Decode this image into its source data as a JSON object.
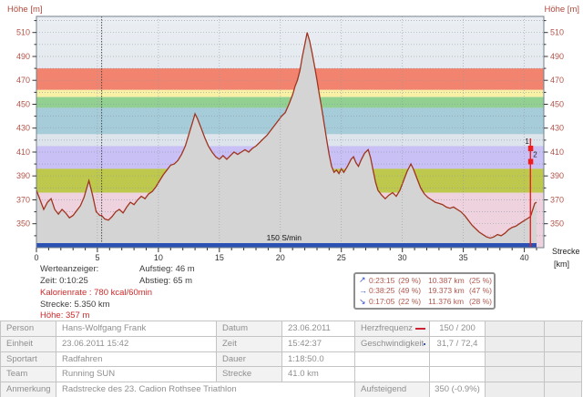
{
  "chart_data": {
    "type": "area",
    "title_left": "Höhe [m]",
    "title_right": "Höhe [m]",
    "x_axis_label_line1": "Strecke",
    "x_axis_label_line2": "[km]",
    "xlim": [
      0,
      41.6
    ],
    "ylim": [
      330,
      523.5
    ],
    "x_major_ticks": [
      0,
      5,
      10,
      15,
      20,
      25,
      30,
      35,
      40
    ],
    "x_minor_step": 1,
    "x_minor_max": 41,
    "y_major_ticks": [
      350,
      370,
      390,
      410,
      430,
      450,
      470,
      490,
      510
    ],
    "y_grid_step": 10,
    "grid": true,
    "legend_position": "none",
    "zone_bands": [
      {
        "name": "zone-band-red",
        "from": 462,
        "to": 480,
        "color": "#f2836e"
      },
      {
        "name": "zone-band-yellow",
        "from": 456,
        "to": 462,
        "color": "#f8f0a5"
      },
      {
        "name": "zone-band-green",
        "from": 447,
        "to": 456,
        "color": "#92d092"
      },
      {
        "name": "zone-band-cyan",
        "from": 425,
        "to": 447,
        "color": "#a6ccd9"
      },
      {
        "name": "zone-band-lavender",
        "from": 396,
        "to": 415,
        "color": "#c9c1f5"
      },
      {
        "name": "zone-band-olive",
        "from": 376,
        "to": 396,
        "color": "#bdc84d"
      },
      {
        "name": "zone-band-pink",
        "from": 330,
        "to": 376,
        "color": "#eed3df"
      }
    ],
    "value_cursor_km": 5.35,
    "cadence_bar": {
      "label": "150 S/min",
      "from_km": 0,
      "to_km": 41,
      "label_at_km": 20.3,
      "color": "#2b51b5"
    },
    "end_markers": {
      "at_km": 40.5,
      "color": "#ee1c1c",
      "items": [
        {
          "label": "1",
          "value_m": 413
        },
        {
          "label": "2",
          "value_m": 402
        }
      ]
    },
    "profile_color": "#a0341f",
    "profile_fill": "#d4d4d4",
    "axis_label_color": "#b1544a",
    "profile_points_km_m": [
      [
        0,
        378
      ],
      [
        0.3,
        370
      ],
      [
        0.6,
        362
      ],
      [
        0.9,
        368
      ],
      [
        1.2,
        371
      ],
      [
        1.5,
        362
      ],
      [
        1.8,
        358
      ],
      [
        2.1,
        362
      ],
      [
        2.4,
        359
      ],
      [
        2.7,
        355
      ],
      [
        3,
        357
      ],
      [
        3.3,
        361
      ],
      [
        3.6,
        365
      ],
      [
        3.9,
        372
      ],
      [
        4.3,
        386
      ],
      [
        4.6,
        374
      ],
      [
        4.9,
        360
      ],
      [
        5.2,
        357
      ],
      [
        5.35,
        357
      ],
      [
        5.6,
        354
      ],
      [
        5.9,
        353
      ],
      [
        6.2,
        356
      ],
      [
        6.5,
        360
      ],
      [
        6.8,
        362
      ],
      [
        7.1,
        359
      ],
      [
        7.4,
        364
      ],
      [
        7.7,
        368
      ],
      [
        8,
        366
      ],
      [
        8.3,
        370
      ],
      [
        8.6,
        373
      ],
      [
        8.9,
        371
      ],
      [
        9.2,
        375
      ],
      [
        9.5,
        377
      ],
      [
        9.8,
        381
      ],
      [
        10.1,
        386
      ],
      [
        10.4,
        391
      ],
      [
        10.7,
        395
      ],
      [
        11,
        399
      ],
      [
        11.3,
        400
      ],
      [
        11.6,
        403
      ],
      [
        11.9,
        408
      ],
      [
        12.2,
        415
      ],
      [
        12.5,
        425
      ],
      [
        12.8,
        435
      ],
      [
        13,
        442
      ],
      [
        13.2,
        438
      ],
      [
        13.5,
        430
      ],
      [
        13.8,
        422
      ],
      [
        14.1,
        415
      ],
      [
        14.4,
        410
      ],
      [
        14.7,
        406
      ],
      [
        15,
        404
      ],
      [
        15.3,
        407
      ],
      [
        15.6,
        404
      ],
      [
        15.9,
        407
      ],
      [
        16.2,
        410
      ],
      [
        16.5,
        408
      ],
      [
        16.8,
        410
      ],
      [
        17.1,
        412
      ],
      [
        17.4,
        410
      ],
      [
        17.7,
        413
      ],
      [
        18,
        415
      ],
      [
        18.3,
        418
      ],
      [
        18.6,
        421
      ],
      [
        18.9,
        424
      ],
      [
        19.2,
        428
      ],
      [
        19.5,
        432
      ],
      [
        19.8,
        436
      ],
      [
        20.1,
        440
      ],
      [
        20.4,
        443
      ],
      [
        20.7,
        450
      ],
      [
        21,
        458
      ],
      [
        21.2,
        465
      ],
      [
        21.4,
        470
      ],
      [
        21.6,
        478
      ],
      [
        21.8,
        490
      ],
      [
        22,
        500
      ],
      [
        22.2,
        510
      ],
      [
        22.4,
        503
      ],
      [
        22.6,
        493
      ],
      [
        22.8,
        482
      ],
      [
        23,
        470
      ],
      [
        23.2,
        458
      ],
      [
        23.4,
        446
      ],
      [
        23.6,
        433
      ],
      [
        23.8,
        420
      ],
      [
        24,
        408
      ],
      [
        24.2,
        398
      ],
      [
        24.4,
        393
      ],
      [
        24.6,
        395
      ],
      [
        24.8,
        392
      ],
      [
        25,
        396
      ],
      [
        25.2,
        393
      ],
      [
        25.5,
        398
      ],
      [
        25.8,
        404
      ],
      [
        26,
        406
      ],
      [
        26.2,
        401
      ],
      [
        26.4,
        398
      ],
      [
        26.6,
        403
      ],
      [
        26.9,
        409
      ],
      [
        27.2,
        412
      ],
      [
        27.4,
        405
      ],
      [
        27.6,
        395
      ],
      [
        27.8,
        385
      ],
      [
        28,
        378
      ],
      [
        28.3,
        374
      ],
      [
        28.6,
        371
      ],
      [
        28.9,
        374
      ],
      [
        29.2,
        376
      ],
      [
        29.5,
        373
      ],
      [
        29.8,
        378
      ],
      [
        30.1,
        386
      ],
      [
        30.4,
        394
      ],
      [
        30.7,
        400
      ],
      [
        30.9,
        396
      ],
      [
        31.2,
        388
      ],
      [
        31.5,
        380
      ],
      [
        31.8,
        375
      ],
      [
        32.1,
        372
      ],
      [
        32.4,
        370
      ],
      [
        32.7,
        368
      ],
      [
        33,
        367
      ],
      [
        33.3,
        366
      ],
      [
        33.6,
        364
      ],
      [
        33.9,
        363
      ],
      [
        34.2,
        364
      ],
      [
        34.5,
        362
      ],
      [
        34.8,
        360
      ],
      [
        35.1,
        357
      ],
      [
        35.4,
        353
      ],
      [
        35.7,
        349
      ],
      [
        36,
        346
      ],
      [
        36.3,
        343
      ],
      [
        36.6,
        341
      ],
      [
        36.9,
        339
      ],
      [
        37.2,
        338
      ],
      [
        37.5,
        339
      ],
      [
        37.8,
        341
      ],
      [
        38.1,
        340
      ],
      [
        38.4,
        342
      ],
      [
        38.7,
        345
      ],
      [
        39,
        347
      ],
      [
        39.3,
        348
      ],
      [
        39.6,
        350
      ],
      [
        39.9,
        352
      ],
      [
        40.2,
        354
      ],
      [
        40.5,
        356
      ],
      [
        40.7,
        362
      ],
      [
        40.85,
        367
      ],
      [
        41,
        368
      ]
    ]
  },
  "info": {
    "werteanzeiger": "Werteanzeiger:",
    "zeit": "Zeit: 0:10:25",
    "kalorienrate": "Kalorienrate : 780 kcal/60min",
    "strecke": "Strecke: 5.350 km",
    "hoehe": "Höhe: 357 m",
    "aufstieg": "Aufstieg: 46 m",
    "abstieg": "Abstieg: 65 m"
  },
  "stats_box": {
    "rows": [
      {
        "arrow": "↗",
        "time": "0:23:15",
        "time_pct": "(29 %)",
        "dist": "10.387 km",
        "dist_pct": "(25 %)"
      },
      {
        "arrow": "→",
        "time": "0:38:25",
        "time_pct": "(49 %)",
        "dist": "19.373 km",
        "dist_pct": "(47 %)"
      },
      {
        "arrow": "↘",
        "time": "0:17:05",
        "time_pct": "(22 %)",
        "dist": "11.376 km",
        "dist_pct": "(28 %)"
      }
    ]
  },
  "table": {
    "rows": [
      {
        "label1": "Person",
        "value1": "Hans-Wolfgang Frank",
        "label2": "Datum",
        "value2": "23.06.2011",
        "label3": "Herzfrequenz",
        "value3": "150 / 200"
      },
      {
        "label1": "Einheit",
        "value1": "23.06.2011 15:42",
        "label2": "Zeit",
        "value2": "15:42:37",
        "label3": "Geschwindigkeit",
        "value3": "31,7 / 72,4"
      },
      {
        "label1": "Sportart",
        "value1": "Radfahren",
        "label2": "Dauer",
        "value2": "1:18:50.0",
        "label3": "",
        "value3": ""
      },
      {
        "label1": "Team",
        "value1": "Running SUN",
        "label2": "Strecke",
        "value2": "41.0 km",
        "label3": "",
        "value3": ""
      },
      {
        "label1": "Anmerkung",
        "value1": "Radstrecke des 23. Cadion Rothsee Triathlon",
        "label3": "Aufsteigend",
        "value3": "350 (-0.9%)"
      }
    ]
  },
  "colors": {
    "heart_rate_legend": "#cc2233",
    "speed_legend": "#3450c8",
    "stats_text": "#b2584e",
    "info_highlight": "#cc2a2a"
  }
}
